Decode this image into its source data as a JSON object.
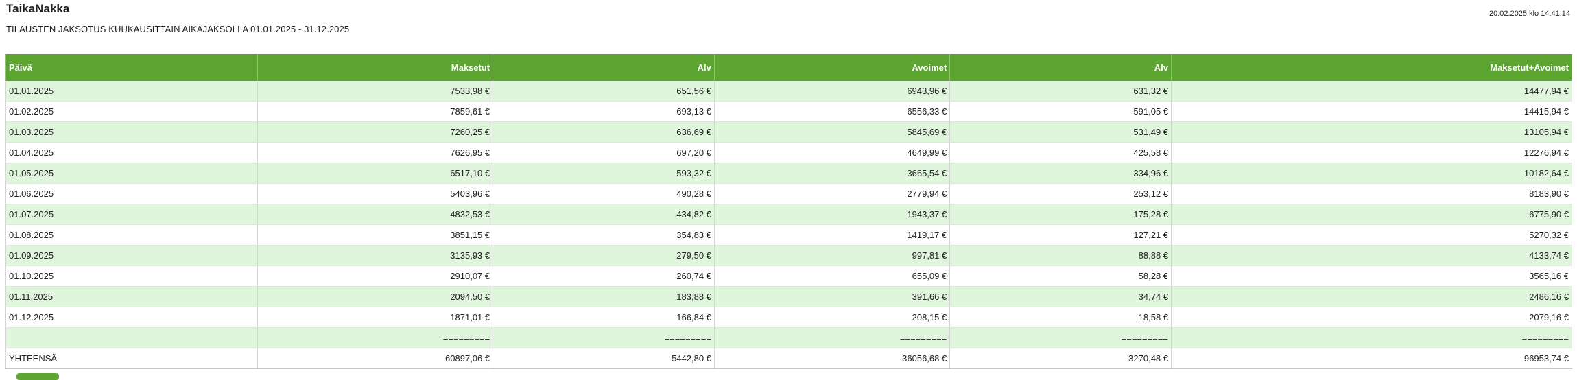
{
  "header": {
    "app_title": "TaikaNakka",
    "timestamp": "20.02.2025 klo 14.41.14",
    "report_title": "TILAUSTEN JAKSOTUS KUUKAUSITTAIN AIKAJAKSOLLA 01.01.2025 - 31.12.2025"
  },
  "table": {
    "columns": [
      "Päivä",
      "Maksetut",
      "Alv",
      "Avoimet",
      "Alv",
      "Maksetut+Avoimet"
    ],
    "rows": [
      [
        "01.01.2025",
        "7533,98 €",
        "651,56 €",
        "6943,96 €",
        "631,32 €",
        "14477,94 €"
      ],
      [
        "01.02.2025",
        "7859,61 €",
        "693,13 €",
        "6556,33 €",
        "591,05 €",
        "14415,94 €"
      ],
      [
        "01.03.2025",
        "7260,25 €",
        "636,69 €",
        "5845,69 €",
        "531,49 €",
        "13105,94 €"
      ],
      [
        "01.04.2025",
        "7626,95 €",
        "697,20 €",
        "4649,99 €",
        "425,58 €",
        "12276,94 €"
      ],
      [
        "01.05.2025",
        "6517,10 €",
        "593,32 €",
        "3665,54 €",
        "334,96 €",
        "10182,64 €"
      ],
      [
        "01.06.2025",
        "5403,96 €",
        "490,28 €",
        "2779,94 €",
        "253,12 €",
        "8183,90 €"
      ],
      [
        "01.07.2025",
        "4832,53 €",
        "434,82 €",
        "1943,37 €",
        "175,28 €",
        "6775,90 €"
      ],
      [
        "01.08.2025",
        "3851,15 €",
        "354,83 €",
        "1419,17 €",
        "127,21 €",
        "5270,32 €"
      ],
      [
        "01.09.2025",
        "3135,93 €",
        "279,50 €",
        "997,81 €",
        "88,88 €",
        "4133,74 €"
      ],
      [
        "01.10.2025",
        "2910,07 €",
        "260,74 €",
        "655,09 €",
        "58,28 €",
        "3565,16 €"
      ],
      [
        "01.11.2025",
        "2094,50 €",
        "183,88 €",
        "391,66 €",
        "34,74 €",
        "2486,16 €"
      ],
      [
        "01.12.2025",
        "1871,01 €",
        "166,84 €",
        "208,15 €",
        "18,58 €",
        "2079,16 €"
      ],
      [
        "",
        "=========",
        "=========",
        "=========",
        "=========",
        "========="
      ],
      [
        "YHTEENSÄ",
        "60897,06 €",
        "5442,80 €",
        "36056,68 €",
        "3270,48 €",
        "96953,74 €"
      ]
    ]
  },
  "colors": {
    "header_green": "#5ba530",
    "row_stripe": "#dff5dc"
  }
}
